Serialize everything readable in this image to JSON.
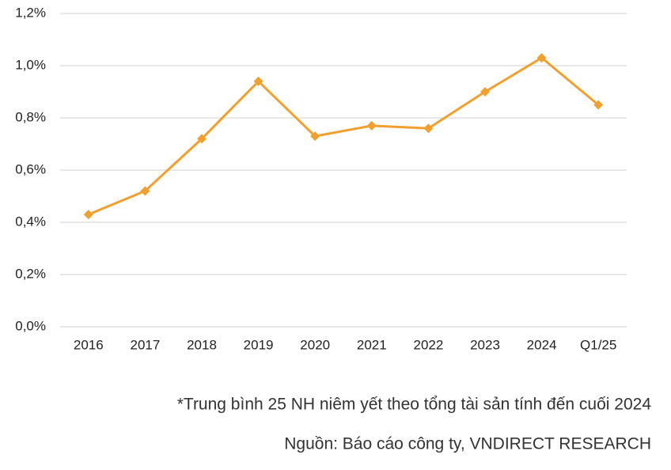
{
  "chart_data": {
    "type": "line",
    "categories": [
      "2016",
      "2017",
      "2018",
      "2019",
      "2020",
      "2021",
      "2022",
      "2023",
      "2024",
      "Q1/25"
    ],
    "series": [
      {
        "color": "#f0a030",
        "values": [
          0.43,
          0.52,
          0.72,
          0.94,
          0.73,
          0.77,
          0.76,
          0.9,
          1.03,
          0.85
        ]
      }
    ],
    "ylim": [
      0,
      1.2
    ],
    "yticks": [
      {
        "value": 0,
        "label": "0,0%"
      },
      {
        "value": 0.2,
        "label": "0,2%"
      },
      {
        "value": 0.4,
        "label": "0,4%"
      },
      {
        "value": 0.6,
        "label": "0,6%"
      },
      {
        "value": 0.8,
        "label": "0,8%"
      },
      {
        "value": 1.0,
        "label": "1,0%"
      },
      {
        "value": 1.2,
        "label": "1,2%"
      }
    ],
    "grid": true,
    "notes": [
      "*Trung bình 25 NH niêm yết theo tổng tài sản tính đến cuối 2024",
      "Nguồn: Báo cáo công ty, VNDIRECT RESEARCH"
    ]
  }
}
